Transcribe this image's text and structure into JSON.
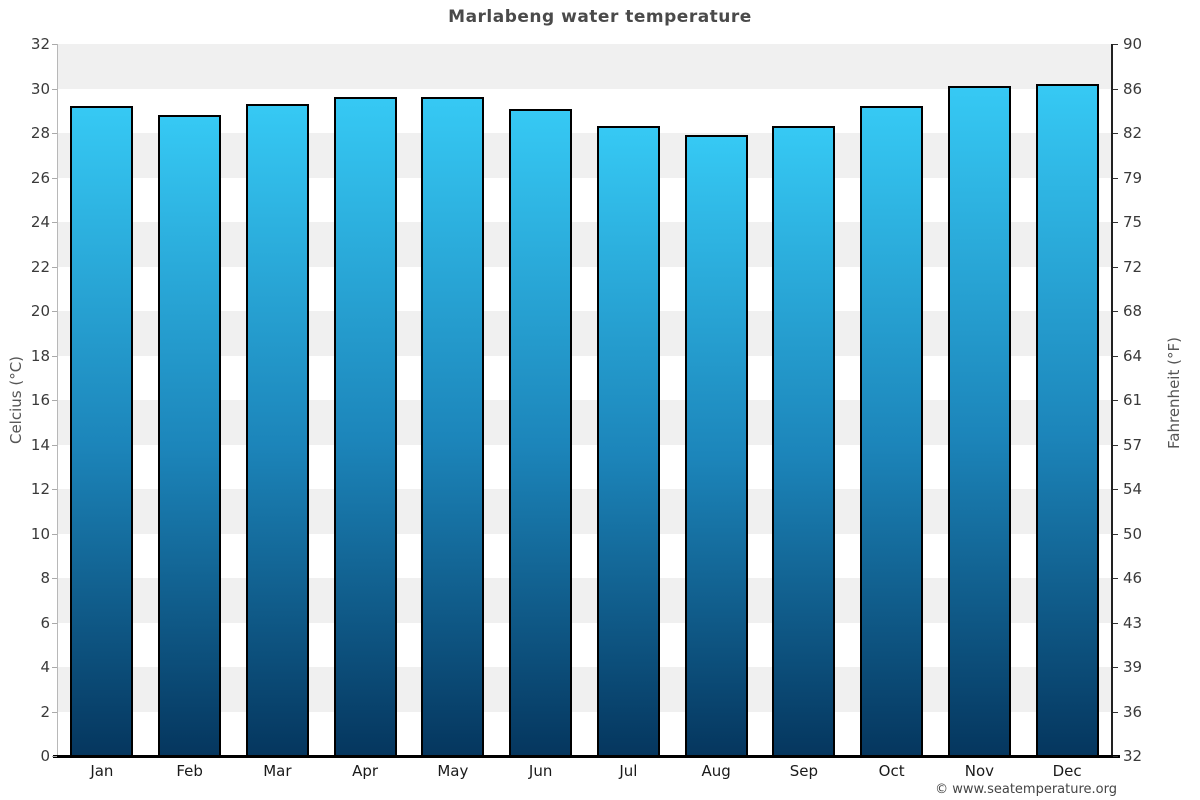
{
  "page": {
    "credit": "© www.seatemperature.org"
  },
  "chart_data": {
    "type": "bar",
    "title": "Marlabeng water temperature",
    "categories": [
      "Jan",
      "Feb",
      "Mar",
      "Apr",
      "May",
      "Jun",
      "Jul",
      "Aug",
      "Sep",
      "Oct",
      "Nov",
      "Dec"
    ],
    "values": [
      29.2,
      28.8,
      29.3,
      29.6,
      29.6,
      29.1,
      28.3,
      27.9,
      28.3,
      29.2,
      30.1,
      30.2
    ],
    "unit": "°C",
    "ylabel_left": "Celcius (°C)",
    "ylabel_right": "Fahrenheit (°F)",
    "ylim": [
      0,
      32
    ],
    "celsius_ticks": [
      32,
      30,
      28,
      26,
      24,
      22,
      20,
      18,
      16,
      14,
      12,
      10,
      8,
      6,
      4,
      2,
      0
    ],
    "fahrenheit_ticks": [
      90,
      86,
      82,
      79,
      75,
      72,
      68,
      64,
      61,
      57,
      54,
      50,
      46,
      43,
      39,
      36,
      32
    ],
    "grid": "alternating-horizontal-bands",
    "legend": "none",
    "colors": {
      "bar_top": "#36c9f4",
      "bar_mid": "#1c85ba",
      "bar_bottom": "#05365e",
      "bar_border": "#000000",
      "band": "#f0f0f0",
      "band_alt": "#ffffff",
      "title_text": "#4a4a4a",
      "tick_text": "#3a3a3a",
      "axis_label_text": "#555555"
    }
  }
}
